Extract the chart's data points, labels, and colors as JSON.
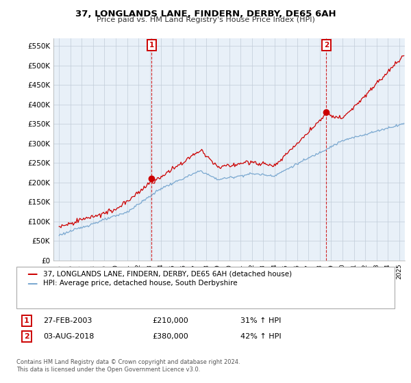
{
  "title": "37, LONGLANDS LANE, FINDERN, DERBY, DE65 6AH",
  "subtitle": "Price paid vs. HM Land Registry's House Price Index (HPI)",
  "ylabel_ticks": [
    "£0",
    "£50K",
    "£100K",
    "£150K",
    "£200K",
    "£250K",
    "£300K",
    "£350K",
    "£400K",
    "£450K",
    "£500K",
    "£550K"
  ],
  "ytick_values": [
    0,
    50000,
    100000,
    150000,
    200000,
    250000,
    300000,
    350000,
    400000,
    450000,
    500000,
    550000
  ],
  "ylim": [
    0,
    570000
  ],
  "legend_line1": "37, LONGLANDS LANE, FINDERN, DERBY, DE65 6AH (detached house)",
  "legend_line2": "HPI: Average price, detached house, South Derbyshire",
  "purchase1_label": "1",
  "purchase2_label": "2",
  "purchase1_date": "27-FEB-2003",
  "purchase1_price": 210000,
  "purchase1_price_str": "£210,000",
  "purchase1_pct": "31% ↑ HPI",
  "purchase2_date": "03-AUG-2018",
  "purchase2_price": 380000,
  "purchase2_price_str": "£380,000",
  "purchase2_pct": "42% ↑ HPI",
  "line_color_property": "#cc0000",
  "line_color_hpi": "#7aa8d0",
  "marker_color_property": "#cc0000",
  "purchase1_marker_year": 2003.15,
  "purchase2_marker_year": 2018.58,
  "purchase1_marker_price": 210000,
  "purchase2_marker_price": 380000,
  "footer": "Contains HM Land Registry data © Crown copyright and database right 2024.\nThis data is licensed under the Open Government Licence v3.0.",
  "background_color": "#ffffff",
  "plot_bg_color": "#e8f0f8",
  "grid_color": "#c0ccd8"
}
